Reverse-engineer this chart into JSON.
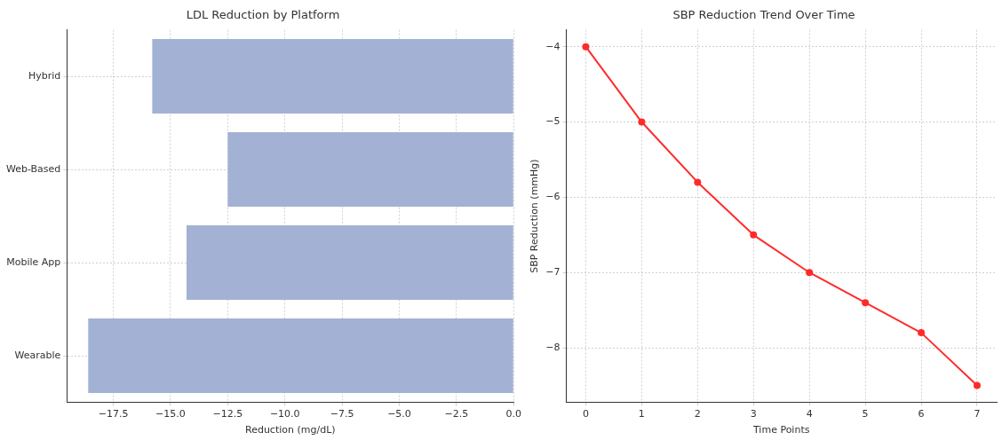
{
  "chart_data": [
    {
      "type": "bar",
      "orientation": "horizontal",
      "title": "LDL Reduction by Platform",
      "xlabel": "Reduction (mg/dL)",
      "categories": [
        "Hybrid",
        "Web-Based",
        "Mobile App",
        "Wearable"
      ],
      "values": [
        -15.8,
        -12.5,
        -14.3,
        -18.6
      ],
      "color": "#a3b1d4",
      "xlim": [
        -19.53,
        0
      ],
      "xticks": [
        {
          "value": -17.5,
          "label": "−17.5"
        },
        {
          "value": -15,
          "label": "−15.0"
        },
        {
          "value": -12.5,
          "label": "−12.5"
        },
        {
          "value": -10,
          "label": "−10.0"
        },
        {
          "value": -7.5,
          "label": "−7.5"
        },
        {
          "value": -5,
          "label": "−5.0"
        },
        {
          "value": -2.5,
          "label": "−2.5"
        },
        {
          "value": 0,
          "label": "0.0"
        }
      ],
      "grid": true
    },
    {
      "type": "line",
      "title": "SBP Reduction Trend Over Time",
      "xlabel": "Time Points",
      "ylabel": "SBP Reduction (mmHg)",
      "x": [
        0,
        1,
        2,
        3,
        4,
        5,
        6,
        7
      ],
      "values": [
        -4,
        -5,
        -5.8,
        -6.5,
        -7,
        -7.4,
        -7.8,
        -8.5
      ],
      "color": "#ff2b2b",
      "xlim": [
        -0.35,
        7.35
      ],
      "xticks": [
        0,
        1,
        2,
        3,
        4,
        5,
        6,
        7
      ],
      "ylim": [
        -8.725,
        -3.775
      ],
      "yticks": [
        {
          "value": -8,
          "label": "−8"
        },
        {
          "value": -7,
          "label": "−7"
        },
        {
          "value": -6,
          "label": "−6"
        },
        {
          "value": -5,
          "label": "−5"
        },
        {
          "value": -4,
          "label": "−4"
        }
      ],
      "grid": true,
      "marker": "circle",
      "line_style": "solid"
    }
  ]
}
